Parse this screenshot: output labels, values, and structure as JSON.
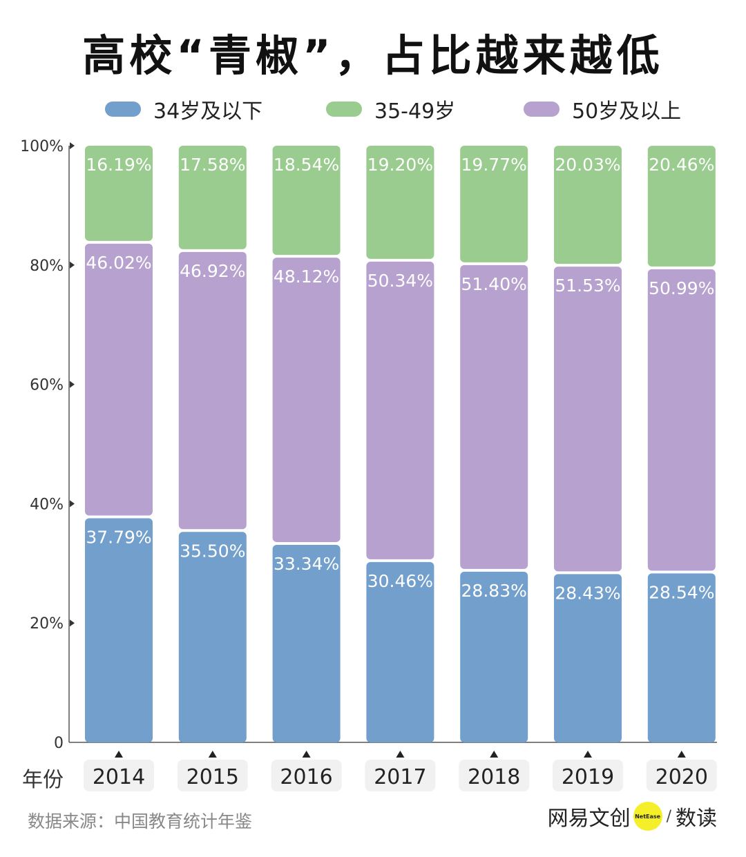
{
  "title": "高校“青椒”，占比越来越低",
  "legend": [
    {
      "label": "34岁及以下",
      "color": "#729fcb"
    },
    {
      "label": "35-49岁",
      "color": "#99cc8e"
    },
    {
      "label": "50岁及以上",
      "color": "#b6a1cf"
    }
  ],
  "x_axis_prefix": "年份",
  "source": "数据来源：中国教育统计年鉴",
  "brand": {
    "name": "网易文创",
    "badge": "NetEase",
    "separator": "/",
    "suffix": "数读"
  },
  "chart_data": {
    "type": "bar",
    "stacked": true,
    "categories": [
      "2014",
      "2015",
      "2016",
      "2017",
      "2018",
      "2019",
      "2020"
    ],
    "series": [
      {
        "name": "34岁及以下",
        "color": "#729fcb",
        "values": [
          37.79,
          35.5,
          33.34,
          30.46,
          28.83,
          28.43,
          28.54
        ],
        "labels": [
          "37.79%",
          "35.50%",
          "33.34%",
          "30.46%",
          "28.83%",
          "28.43%",
          "28.54%"
        ]
      },
      {
        "name": "50岁及以上",
        "color": "#b6a1cf",
        "values": [
          46.02,
          46.92,
          48.12,
          50.34,
          51.4,
          51.53,
          50.99
        ],
        "labels": [
          "46.02%",
          "46.92%",
          "48.12%",
          "50.34%",
          "51.40%",
          "51.53%",
          "50.99%"
        ]
      },
      {
        "name": "35-49岁",
        "color": "#99cc8e",
        "values": [
          16.19,
          17.58,
          18.54,
          19.2,
          19.77,
          20.03,
          20.46
        ],
        "labels": [
          "16.19%",
          "17.58%",
          "18.54%",
          "19.20%",
          "19.77%",
          "20.03%",
          "20.46%"
        ]
      }
    ],
    "ylim": [
      0,
      100
    ],
    "yticks": [
      "0",
      "20%",
      "40%",
      "60%",
      "80%",
      "100%"
    ],
    "ytick_values": [
      0,
      20,
      40,
      60,
      80,
      100
    ],
    "legend_position": "top",
    "grid": false
  }
}
